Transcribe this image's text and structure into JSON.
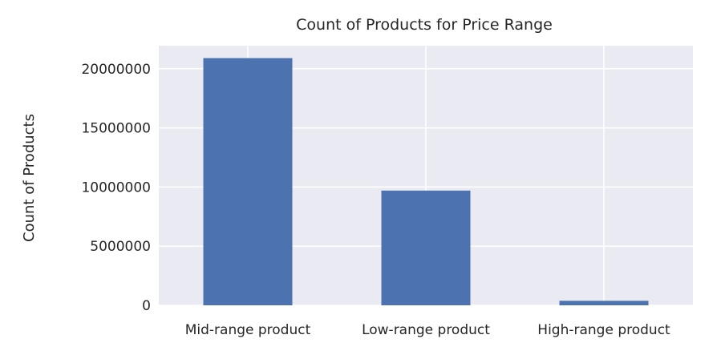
{
  "chart_data": {
    "type": "bar",
    "title": "Count of Products for Price Range",
    "xlabel": "",
    "ylabel": "Count of Products",
    "categories": [
      "Mid-range product",
      "Low-range product",
      "High-range product"
    ],
    "values": [
      20900000,
      9700000,
      380000
    ],
    "ylim": [
      0,
      21950000
    ],
    "yticks": [
      0,
      5000000,
      10000000,
      15000000,
      20000000
    ],
    "ytick_labels": [
      "0",
      "5000000",
      "10000000",
      "15000000",
      "20000000"
    ],
    "grid": true,
    "legend": "none",
    "colors": {
      "bar": "#4c72b0",
      "plot_bg": "#eaeaf2",
      "grid": "#ffffff",
      "text": "#262626"
    }
  }
}
